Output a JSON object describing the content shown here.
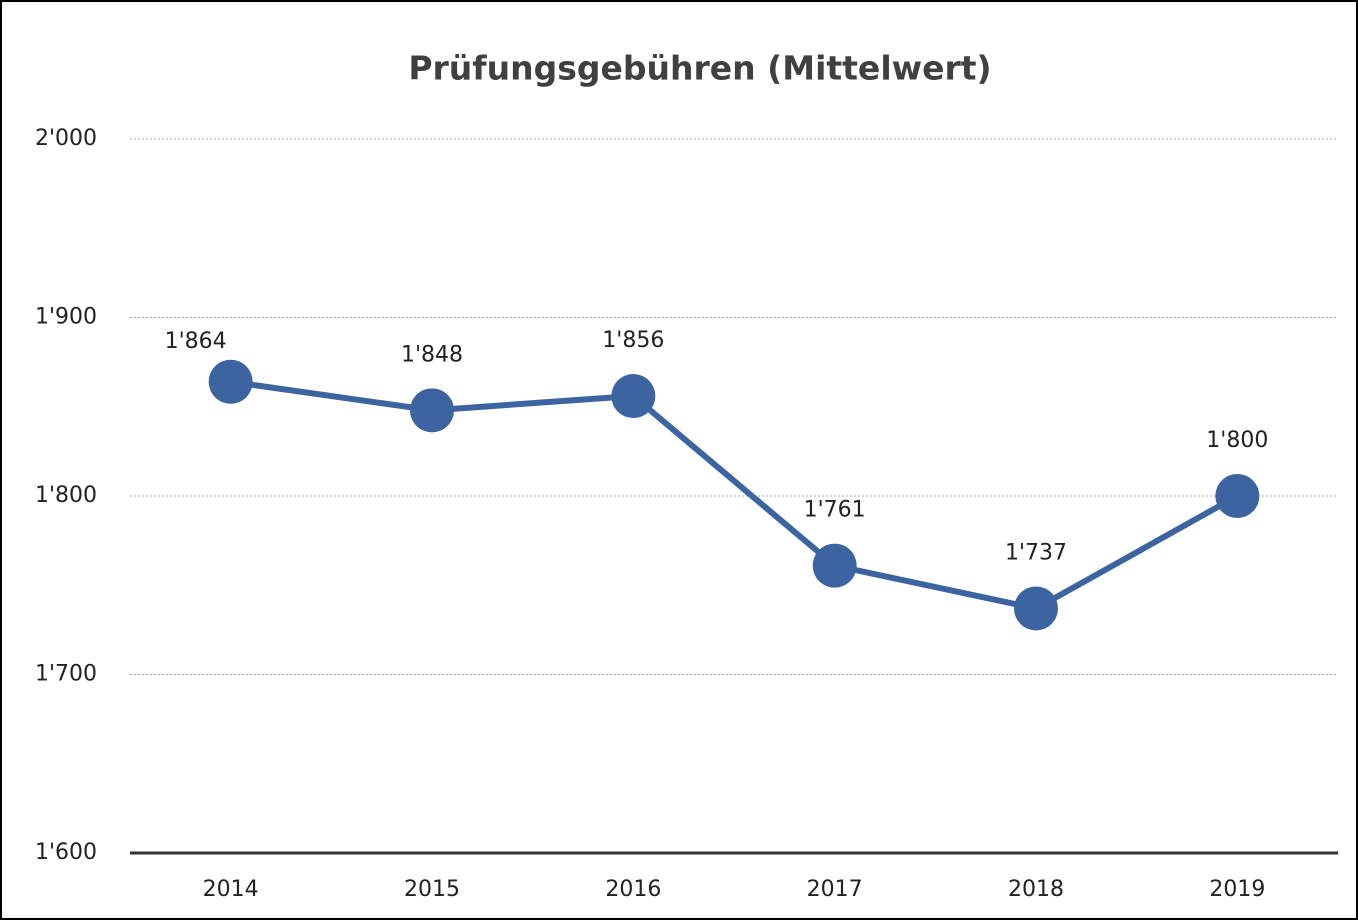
{
  "chart_data": {
    "type": "line",
    "title": "Prüfungsgebühren (Mittelwert)",
    "categories": [
      "2014",
      "2015",
      "2016",
      "2017",
      "2018",
      "2019"
    ],
    "values": [
      1864,
      1848,
      1856,
      1761,
      1737,
      1800
    ],
    "value_labels": [
      "1'864",
      "1'848",
      "1'856",
      "1'761",
      "1'737",
      "1'800"
    ],
    "color": "#3c64a0",
    "ylim": [
      1600,
      2000
    ],
    "yticks": [
      {
        "value": 1600,
        "label": "1'600"
      },
      {
        "value": 1700,
        "label": "1'700"
      },
      {
        "value": 1800,
        "label": "1'800"
      },
      {
        "value": 1900,
        "label": "1'900"
      },
      {
        "value": 2000,
        "label": "2'000"
      }
    ],
    "grid": true
  }
}
